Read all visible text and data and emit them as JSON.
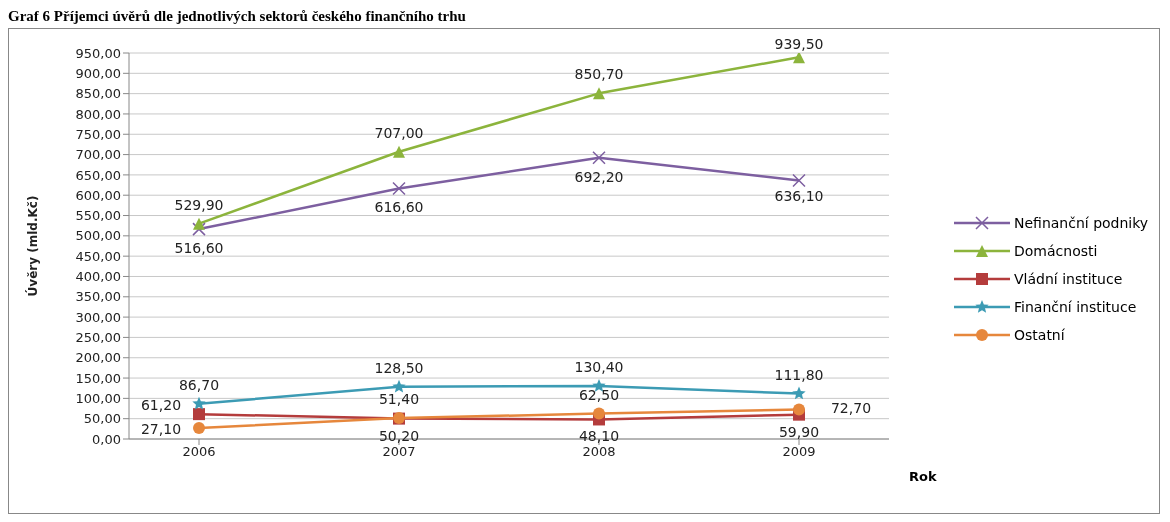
{
  "chart_data": {
    "type": "line",
    "title": "Graf 6 Příjemci úvěrů dle jednotlivých sektorů českého finančního trhu",
    "xlabel": "Rok",
    "ylabel": "Úvěry (mld.Kč)",
    "categories": [
      "2006",
      "2007",
      "2008",
      "2009"
    ],
    "series": [
      {
        "name": "Nefinanční podniky",
        "color": "#7d5fa0",
        "marker": "cross",
        "values": [
          516.6,
          616.6,
          692.2,
          636.1
        ],
        "value_labels": [
          "516,60",
          "616,60",
          "692,20",
          "636,10"
        ]
      },
      {
        "name": "Domácnosti",
        "color": "#8cb43c",
        "marker": "triangle",
        "values": [
          529.9,
          707.0,
          850.7,
          939.5
        ],
        "value_labels": [
          "529,90",
          "707,00",
          "850,70",
          "939,50"
        ]
      },
      {
        "name": "Vládní instituce",
        "color": "#b43c3c",
        "marker": "square",
        "values": [
          61.2,
          50.2,
          48.1,
          59.9
        ],
        "value_labels": [
          "61,20",
          "50,20",
          "48,10",
          "59,90"
        ]
      },
      {
        "name": "Finanční instituce",
        "color": "#3c9bb4",
        "marker": "star",
        "values": [
          86.7,
          128.5,
          130.4,
          111.8
        ],
        "value_labels": [
          "86,70",
          "128,50",
          "130,40",
          "111,80"
        ]
      },
      {
        "name": "Ostatní",
        "color": "#e6873c",
        "marker": "circle",
        "values": [
          27.1,
          51.4,
          62.5,
          72.7
        ],
        "value_labels": [
          "27,10",
          "51,40",
          "62,50",
          "72,70"
        ]
      }
    ],
    "ylim": [
      0,
      950
    ],
    "yticks": [
      {
        "value": 0,
        "label": "0,00"
      },
      {
        "value": 50,
        "label": "50,00"
      },
      {
        "value": 100,
        "label": "100,00"
      },
      {
        "value": 150,
        "label": "150,00"
      },
      {
        "value": 200,
        "label": "200,00"
      },
      {
        "value": 250,
        "label": "250,00"
      },
      {
        "value": 300,
        "label": "300,00"
      },
      {
        "value": 350,
        "label": "350,00"
      },
      {
        "value": 400,
        "label": "400,00"
      },
      {
        "value": 450,
        "label": "450,00"
      },
      {
        "value": 500,
        "label": "500,00"
      },
      {
        "value": 550,
        "label": "550,00"
      },
      {
        "value": 600,
        "label": "600,00"
      },
      {
        "value": 650,
        "label": "650,00"
      },
      {
        "value": 700,
        "label": "700,00"
      },
      {
        "value": 750,
        "label": "750,00"
      },
      {
        "value": 800,
        "label": "800,00"
      },
      {
        "value": 850,
        "label": "850,00"
      },
      {
        "value": 900,
        "label": "900,00"
      },
      {
        "value": 950,
        "label": "950,00"
      }
    ],
    "grid": "y",
    "legend": "right"
  }
}
